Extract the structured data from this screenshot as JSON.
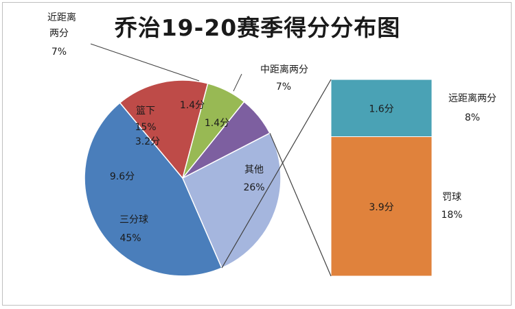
{
  "chart_data": {
    "type": "pie",
    "title": "乔治19-20赛季得分分布图",
    "slices": [
      {
        "name": "三分球",
        "percent": "45%",
        "value_label": "9.6分",
        "value": 9.6,
        "color": "#4a7ebb"
      },
      {
        "name": "篮下",
        "percent": "15%",
        "value_label": "3.2分",
        "value": 3.2,
        "color": "#be4b48"
      },
      {
        "name": "近距离两分",
        "percent": "7%",
        "value_label": "1.4分",
        "value": 1.4,
        "color": "#98b954"
      },
      {
        "name": "中距离两分",
        "percent": "7%",
        "value_label": "1.4分",
        "value": 1.4,
        "color": "#7d5fa0"
      },
      {
        "name": "其他",
        "percent": "26%",
        "value_label": "",
        "value": 5.5,
        "color": "#a5b6de"
      }
    ],
    "breakdown": {
      "of": "其他",
      "items": [
        {
          "name": "远距离两分",
          "percent": "8%",
          "value_label": "1.6分",
          "value": 1.6,
          "color": "#4aa2b5"
        },
        {
          "name": "罚球",
          "percent": "18%",
          "value_label": "3.9分",
          "value": 3.9,
          "color": "#e0823c"
        }
      ]
    }
  }
}
